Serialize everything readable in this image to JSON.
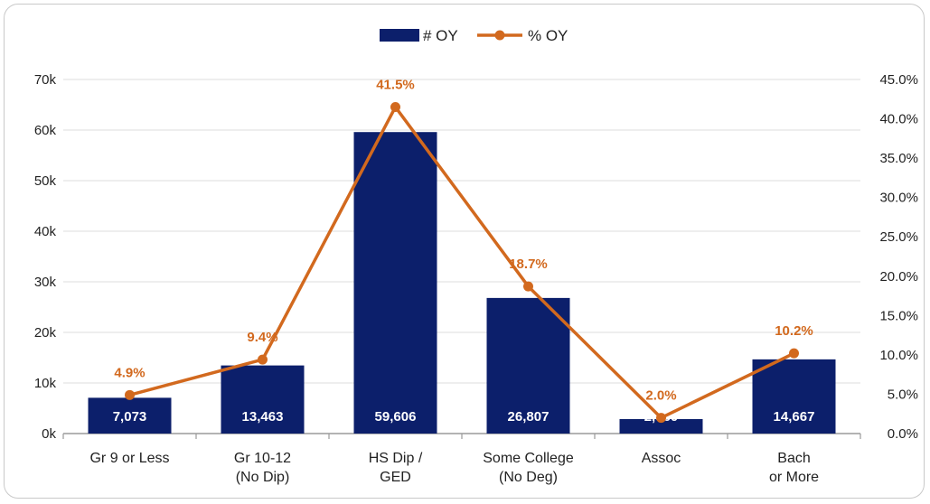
{
  "chart_data": {
    "type": "bar",
    "categories": [
      [
        "Gr 9 or Less"
      ],
      [
        "Gr 10-12",
        "(No Dip)"
      ],
      [
        "HS Dip /",
        "GED"
      ],
      [
        "Some College",
        "(No Deg)"
      ],
      [
        "Assoc"
      ],
      [
        "Bach",
        "or More"
      ]
    ],
    "series": [
      {
        "name": "# OY",
        "type": "bar",
        "axis": "left",
        "values": [
          7073,
          13463,
          59606,
          26807,
          2860,
          14667
        ],
        "labels": [
          "7,073",
          "13,463",
          "59,606",
          "26,807",
          "2,860",
          "14,667"
        ],
        "color": "#0c1f6b"
      },
      {
        "name": "% OY",
        "type": "line",
        "axis": "right",
        "values": [
          4.9,
          9.4,
          41.5,
          18.7,
          2.0,
          10.2
        ],
        "labels": [
          "4.9%",
          "9.4%",
          "41.5%",
          "18.7%",
          "2.0%",
          "10.2%"
        ],
        "color": "#d2691e"
      }
    ],
    "left_axis": {
      "ylim": [
        0,
        70000
      ],
      "ticks": [
        0,
        10000,
        20000,
        30000,
        40000,
        50000,
        60000,
        70000
      ],
      "tick_labels": [
        "0k",
        "10k",
        "20k",
        "30k",
        "40k",
        "50k",
        "60k",
        "70k"
      ]
    },
    "right_axis": {
      "ylim": [
        0,
        45
      ],
      "ticks": [
        0,
        5,
        10,
        15,
        20,
        25,
        30,
        35,
        40,
        45
      ],
      "tick_labels": [
        "0.0%",
        "5.0%",
        "10.0%",
        "15.0%",
        "20.0%",
        "25.0%",
        "30.0%",
        "35.0%",
        "40.0%",
        "45.0%"
      ]
    },
    "grid": true,
    "legend_position": "top-center",
    "title": "",
    "xlabel": "",
    "ylabel": ""
  }
}
